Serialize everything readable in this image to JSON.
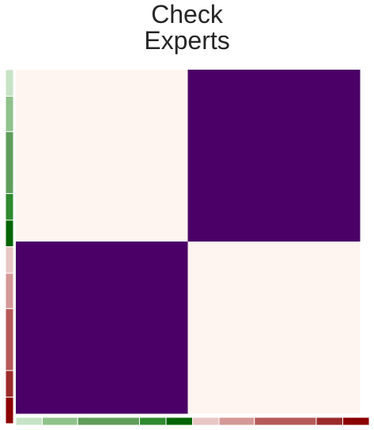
{
  "chart_data": {
    "type": "heatmap",
    "title": "Check\nExperts",
    "matrix": [
      [
        0,
        1
      ],
      [
        1,
        0
      ]
    ],
    "low_color": "#fff5f0",
    "high_color": "#4a0066",
    "group_colors": [
      "#c7e3c5",
      "#8fc28a",
      "#5f9e5a",
      "#2e8a2e",
      "#006400",
      "#e8c6c4",
      "#d49896",
      "#b55a58",
      "#9b2b2b",
      "#8b0000"
    ],
    "group_sizes": [
      3,
      4,
      7,
      3,
      3,
      3,
      4,
      7,
      3,
      3
    ]
  }
}
